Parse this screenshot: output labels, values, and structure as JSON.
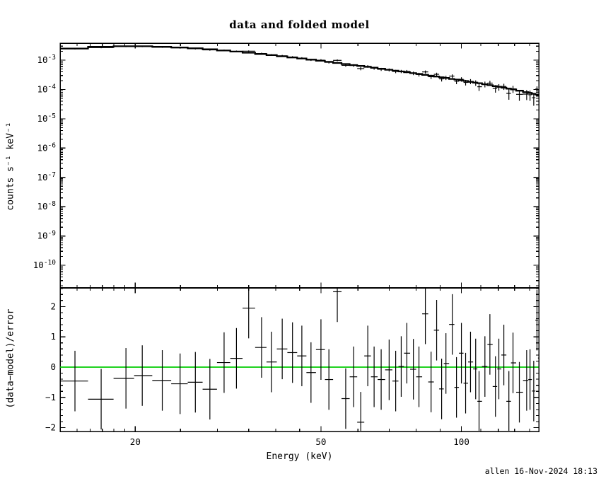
{
  "footer": {
    "timestamp": "allen 16-Nov-2024 18:13"
  },
  "chart_data": {
    "type": "line",
    "title": "data and folded model",
    "xlabel": "Energy (keV)",
    "xscale": "log",
    "xlim": [
      13.8,
      146.5
    ],
    "xticks_major": [
      20,
      50,
      100
    ],
    "xtick_labels": [
      "20",
      "50",
      "100"
    ],
    "xticks_minor": [
      15,
      16,
      17,
      18,
      19,
      25,
      30,
      35,
      40,
      45,
      60,
      70,
      80,
      90,
      110,
      120,
      130,
      140
    ],
    "data_color": "#000000",
    "panels": [
      {
        "name": "spectrum",
        "ylabel": "counts s⁻¹ keV⁻¹",
        "yscale": "log",
        "ylim": [
          1.7e-11,
          0.0038
        ],
        "ytick_exponents": [
          -3,
          -4,
          -5,
          -6,
          -7,
          -8,
          -9,
          -10
        ],
        "model": {
          "energy_keV": [
            14,
            16,
            18,
            20,
            22,
            25,
            28,
            32,
            36,
            40,
            45,
            50,
            56,
            63,
            70,
            80,
            90,
            100,
            110,
            120,
            130,
            140,
            147
          ],
          "flux": [
            0.0023,
            0.00275,
            0.00295,
            0.003,
            0.00292,
            0.0027,
            0.00244,
            0.00205,
            0.00172,
            0.00143,
            0.00116,
            0.00095,
            0.00075,
            0.00059,
            0.00047,
            0.00035,
            0.000265,
            0.000205,
            0.00016,
            0.000124,
            9.8e-05,
            7.7e-05,
            6.4e-05
          ]
        },
        "data": {
          "bin_centers_keV": [
            14.85,
            16.9,
            19.1,
            20.7,
            22.85,
            24.95,
            26.9,
            28.9,
            31.0,
            32.95,
            35.0,
            37.3,
            39.15,
            41.3,
            43.45,
            45.5,
            47.6,
            50.0,
            52.0,
            54.2,
            56.5,
            58.75,
            60.85,
            63.0,
            65.0,
            67.3,
            70.0,
            72.3,
            74.3,
            76.4,
            78.9,
            81.1,
            83.7,
            86.1,
            88.5,
            90.7,
            92.65,
            95.6,
            97.6,
            100.0,
            102.1,
            104.6,
            107.3,
            109.1,
            112.3,
            115.1,
            118.3,
            120.3,
            123.3,
            126.4,
            129.0,
            133.1,
            138.0,
            140.3,
            142.9,
            145.2,
            146.6
          ],
          "residual_sigma": [
            -0.46,
            -1.06,
            -0.37,
            -0.28,
            -0.44,
            -0.55,
            -0.5,
            -0.73,
            0.15,
            0.29,
            1.95,
            0.65,
            0.17,
            0.6,
            0.48,
            0.37,
            -0.18,
            0.58,
            -0.41,
            2.49,
            -1.04,
            -0.32,
            -1.82,
            0.37,
            -0.32,
            -0.41,
            -0.09,
            -0.46,
            0.02,
            0.46,
            -0.07,
            -0.32,
            1.76,
            -0.49,
            1.22,
            -0.72,
            0.12,
            1.41,
            -0.67,
            0.46,
            -0.53,
            0.17,
            -0.06,
            -1.13,
            0.02,
            0.75,
            -0.64,
            -0.06,
            0.4,
            -1.13,
            0.14,
            -0.83,
            -0.44,
            -0.41,
            -0.79,
            1.55,
            0.3
          ],
          "fractional_error": [
            0.05,
            0.05,
            0.05,
            0.052,
            0.054,
            0.056,
            0.058,
            0.06,
            0.062,
            0.064,
            0.066,
            0.068,
            0.07,
            0.073,
            0.076,
            0.079,
            0.082,
            0.085,
            0.088,
            0.091,
            0.094,
            0.098,
            0.102,
            0.106,
            0.11,
            0.114,
            0.118,
            0.123,
            0.127,
            0.132,
            0.137,
            0.142,
            0.148,
            0.153,
            0.159,
            0.164,
            0.17,
            0.177,
            0.182,
            0.188,
            0.194,
            0.201,
            0.209,
            0.214,
            0.224,
            0.233,
            0.243,
            0.25,
            0.261,
            0.273,
            0.283,
            0.3,
            0.32,
            0.33,
            0.341,
            0.351,
            0.85
          ]
        }
      },
      {
        "name": "residuals",
        "ylabel": "(data−model)/error",
        "ylim": [
          -2.126,
          2.617
        ],
        "yticks": [
          2,
          1,
          0,
          -1,
          -2
        ],
        "ytick_labels": [
          "2",
          "1",
          "0",
          "−1",
          "−2"
        ],
        "ytick_minor_step": 0.2,
        "zero_line": {
          "y": 0,
          "color": "#00cc00"
        }
      }
    ]
  }
}
